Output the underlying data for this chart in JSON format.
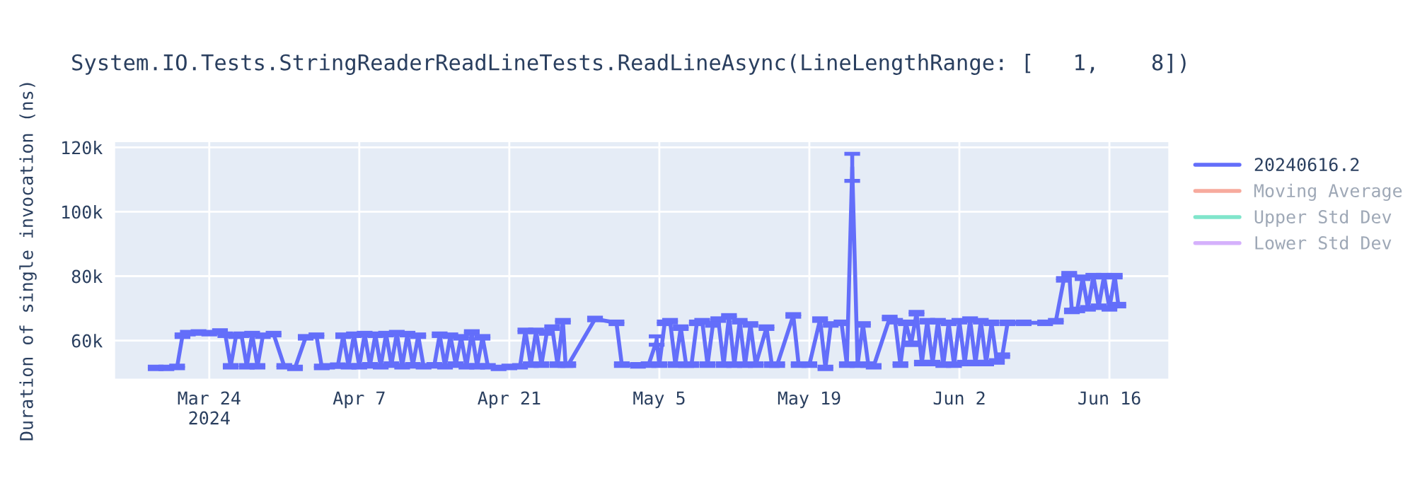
{
  "chart_data": {
    "type": "line",
    "title": "System.IO.Tests.StringReaderReadLineTests.ReadLineAsync(LineLengthRange: [   1,    8])",
    "ylabel": "Duration of single invocation (ns)",
    "x": [
      "2024-03-19",
      "2024-03-20",
      "2024-03-21",
      "2024-03-21T12:00",
      "2024-03-22",
      "2024-03-23",
      "2024-03-24",
      "2024-03-25",
      "2024-03-25T12:00",
      "2024-03-26",
      "2024-03-26T12:00",
      "2024-03-27",
      "2024-03-27T12:00",
      "2024-03-28",
      "2024-03-28T12:00",
      "2024-03-29",
      "2024-03-30",
      "2024-03-31",
      "2024-04-01",
      "2024-04-02",
      "2024-04-03",
      "2024-04-03T12:00",
      "2024-04-04",
      "2024-04-05",
      "2024-04-05T12:00",
      "2024-04-06",
      "2024-04-06T12:00",
      "2024-04-07",
      "2024-04-07T12:00",
      "2024-04-08",
      "2024-04-08T12:00",
      "2024-04-09",
      "2024-04-09T12:00",
      "2024-04-10",
      "2024-04-10T12:00",
      "2024-04-11",
      "2024-04-11T12:00",
      "2024-04-12",
      "2024-04-12T12:00",
      "2024-04-13",
      "2024-04-14",
      "2024-04-14T12:00",
      "2024-04-15",
      "2024-04-15T12:00",
      "2024-04-16",
      "2024-04-16T12:00",
      "2024-04-17",
      "2024-04-17T12:00",
      "2024-04-18",
      "2024-04-18T12:00",
      "2024-04-19",
      "2024-04-20",
      "2024-04-21",
      "2024-04-22",
      "2024-04-22T12:00",
      "2024-04-23",
      "2024-04-23T12:00",
      "2024-04-24",
      "2024-04-24T12:00",
      "2024-04-25",
      "2024-04-25T12:00",
      "2024-04-26",
      "2024-04-26T06:00",
      "2024-04-26T12:00",
      "2024-04-29",
      "2024-05-01",
      "2024-05-01T12:00",
      "2024-05-03",
      "2024-05-04",
      "2024-05-04T18:00",
      "2024-05-05",
      "2024-05-05T12:00",
      "2024-05-06",
      "2024-05-06T12:00",
      "2024-05-07",
      "2024-05-07T12:00",
      "2024-05-08",
      "2024-05-08T12:00",
      "2024-05-09",
      "2024-05-09T12:00",
      "2024-05-10",
      "2024-05-10T12:00",
      "2024-05-11",
      "2024-05-11T12:00",
      "2024-05-12",
      "2024-05-12T12:00",
      "2024-05-13",
      "2024-05-13T12:00",
      "2024-05-14",
      "2024-05-15",
      "2024-05-15T12:00",
      "2024-05-16",
      "2024-05-17T12:00",
      "2024-05-18",
      "2024-05-19",
      "2024-05-20",
      "2024-05-20T12:00",
      "2024-05-21",
      "2024-05-22",
      "2024-05-22T12:00",
      "2024-05-23",
      "2024-05-23T12:00",
      "2024-05-24",
      "2024-05-24T12:00",
      "2024-05-25",
      "2024-05-26T12:00",
      "2024-05-27",
      "2024-05-27T12:00",
      "2024-05-28",
      "2024-05-28T12:00",
      "2024-05-29",
      "2024-05-29T12:00",
      "2024-05-30",
      "2024-05-30T12:00",
      "2024-05-31",
      "2024-05-31T12:00",
      "2024-06-01",
      "2024-06-01T12:00",
      "2024-06-02",
      "2024-06-02T12:00",
      "2024-06-03",
      "2024-06-03T12:00",
      "2024-06-04",
      "2024-06-04T12:00",
      "2024-06-05",
      "2024-06-05T12:00",
      "2024-06-06",
      "2024-06-06T12:00",
      "2024-06-08",
      "2024-06-10",
      "2024-06-11",
      "2024-06-11T18:00",
      "2024-06-12T06:00",
      "2024-06-12T12:00",
      "2024-06-13",
      "2024-06-13T12:00",
      "2024-06-14",
      "2024-06-14T12:00",
      "2024-06-15",
      "2024-06-15T12:00",
      "2024-06-16",
      "2024-06-16T12:00",
      "2024-06-16T20:00"
    ],
    "series": [
      {
        "name": "20240616.2",
        "color": "#636efa",
        "values": [
          51500,
          51500,
          51800,
          61500,
          62300,
          62500,
          62300,
          62800,
          61800,
          52000,
          61500,
          61800,
          52000,
          62000,
          52000,
          61500,
          62000,
          52000,
          51500,
          61000,
          61500,
          51800,
          52000,
          52200,
          61500,
          52000,
          61800,
          52000,
          62000,
          52300,
          61800,
          52000,
          62000,
          52500,
          62300,
          52000,
          62000,
          52300,
          61500,
          52000,
          52300,
          61800,
          52000,
          61500,
          52500,
          61000,
          52000,
          62500,
          52000,
          61000,
          52000,
          51500,
          51800,
          52000,
          63000,
          52500,
          63000,
          52500,
          62500,
          64000,
          52500,
          66000,
          52500,
          52500,
          66700,
          65500,
          52500,
          52300,
          52500,
          60000,
          52500,
          65500,
          66000,
          52500,
          64000,
          52500,
          52500,
          65500,
          66000,
          52500,
          65000,
          66500,
          52500,
          67500,
          52500,
          66000,
          52500,
          65000,
          52500,
          64000,
          52500,
          52500,
          67800,
          52500,
          52500,
          66500,
          51500,
          65000,
          65500,
          52500,
          113800,
          52500,
          65000,
          52500,
          52000,
          67000,
          66000,
          52500,
          65500,
          59000,
          68500,
          53000,
          66000,
          53000,
          66000,
          52500,
          65500,
          52500,
          66000,
          53000,
          66500,
          53000,
          66000,
          53000,
          65500,
          53500,
          55300,
          65500,
          65500,
          65500,
          66000,
          79000,
          80600,
          69200,
          69500,
          79500,
          70000,
          80000,
          70500,
          80000,
          70000,
          80000,
          71000
        ],
        "errors": [
          400,
          400,
          400,
          400,
          400,
          400,
          400,
          400,
          400,
          400,
          400,
          400,
          400,
          400,
          400,
          400,
          400,
          400,
          400,
          400,
          400,
          400,
          400,
          400,
          400,
          400,
          400,
          400,
          400,
          400,
          400,
          400,
          400,
          400,
          400,
          400,
          400,
          400,
          400,
          400,
          400,
          400,
          400,
          400,
          400,
          400,
          400,
          400,
          400,
          400,
          400,
          400,
          400,
          400,
          400,
          400,
          400,
          400,
          400,
          400,
          400,
          400,
          400,
          400,
          400,
          400,
          400,
          400,
          400,
          1300,
          400,
          400,
          400,
          400,
          400,
          400,
          400,
          400,
          400,
          400,
          400,
          400,
          400,
          400,
          400,
          400,
          400,
          400,
          400,
          400,
          400,
          400,
          400,
          400,
          400,
          400,
          400,
          400,
          400,
          400,
          4200,
          400,
          400,
          400,
          400,
          400,
          400,
          400,
          400,
          400,
          400,
          400,
          400,
          400,
          400,
          400,
          400,
          400,
          400,
          400,
          400,
          400,
          400,
          400,
          400,
          400,
          400,
          400,
          400,
          400,
          400,
          400,
          400,
          400,
          400,
          400,
          400,
          400,
          400,
          400,
          400,
          400,
          400
        ]
      },
      {
        "name": "Moving Average",
        "color": "#f7aa9d",
        "values": [
          null,
          null,
          null,
          null,
          null,
          null,
          null,
          null,
          null,
          null,
          null,
          null,
          null,
          null,
          null,
          null,
          null,
          null,
          null,
          null,
          null,
          null,
          null,
          null,
          null,
          null,
          null,
          null,
          null,
          null,
          null,
          null,
          null,
          null,
          null,
          null,
          null,
          null,
          null,
          null,
          null,
          null,
          null,
          null,
          null,
          null,
          null,
          null,
          null,
          null,
          null,
          null,
          null,
          null,
          null,
          null,
          null,
          null,
          null,
          null,
          null,
          null,
          null,
          null,
          null,
          null,
          null,
          null,
          null,
          null,
          null,
          null,
          null,
          null,
          null,
          null,
          null,
          null,
          null,
          null,
          null,
          null,
          null,
          null,
          null,
          null,
          null,
          null,
          null,
          null,
          null,
          null,
          null,
          null,
          null,
          null,
          null,
          null,
          null,
          null,
          null,
          null,
          null,
          null,
          null,
          null,
          null,
          null,
          null,
          null,
          null,
          null,
          null,
          null,
          null,
          null,
          null,
          null,
          null,
          null,
          null,
          null,
          null,
          null,
          null,
          null,
          null,
          null,
          null,
          null,
          null,
          null,
          null,
          null,
          null,
          null,
          null,
          null,
          null,
          null,
          null,
          null,
          null
        ]
      },
      {
        "name": "Upper Std Dev",
        "color": "#80e5cb",
        "values": [
          null,
          null,
          null,
          null,
          null,
          null,
          null,
          null,
          null,
          null,
          null,
          null,
          null,
          null,
          null,
          null,
          null,
          null,
          null,
          null,
          null,
          null,
          null,
          null,
          null,
          null,
          null,
          null,
          null,
          null,
          null,
          null,
          null,
          null,
          null,
          null,
          null,
          null,
          null,
          null,
          null,
          null,
          null,
          null,
          null,
          null,
          null,
          null,
          null,
          null,
          null,
          null,
          null,
          null,
          null,
          null,
          null,
          null,
          null,
          null,
          null,
          null,
          null,
          null,
          null,
          null,
          null,
          null,
          null,
          null,
          null,
          null,
          null,
          null,
          null,
          null,
          null,
          null,
          null,
          null,
          null,
          null,
          null,
          null,
          null,
          null,
          null,
          null,
          null,
          null,
          null,
          null,
          null,
          null,
          null,
          null,
          null,
          null,
          null,
          null,
          null,
          null,
          null,
          null,
          null,
          null,
          null,
          null,
          null,
          null,
          null,
          null,
          null,
          null,
          null,
          null,
          null,
          null,
          null,
          null,
          null,
          null,
          null,
          null,
          null,
          null,
          null,
          null,
          null,
          null,
          null,
          null,
          null,
          null,
          null,
          null,
          null,
          null,
          null,
          null,
          null,
          null,
          null
        ]
      },
      {
        "name": "Lower Std Dev",
        "color": "#d5b1fc",
        "values": [
          null,
          null,
          null,
          null,
          null,
          null,
          null,
          null,
          null,
          null,
          null,
          null,
          null,
          null,
          null,
          null,
          null,
          null,
          null,
          null,
          null,
          null,
          null,
          null,
          null,
          null,
          null,
          null,
          null,
          null,
          null,
          null,
          null,
          null,
          null,
          null,
          null,
          null,
          null,
          null,
          null,
          null,
          null,
          null,
          null,
          null,
          null,
          null,
          null,
          null,
          null,
          null,
          null,
          null,
          null,
          null,
          null,
          null,
          null,
          null,
          null,
          null,
          null,
          null,
          null,
          null,
          null,
          null,
          null,
          null,
          null,
          null,
          null,
          null,
          null,
          null,
          null,
          null,
          null,
          null,
          null,
          null,
          null,
          null,
          null,
          null,
          null,
          null,
          null,
          null,
          null,
          null,
          null,
          null,
          null,
          null,
          null,
          null,
          null,
          null,
          null,
          null,
          null,
          null,
          null,
          null,
          null,
          null,
          null,
          null,
          null,
          null,
          null,
          null,
          null,
          null,
          null,
          null,
          null,
          null,
          null,
          null,
          null,
          null,
          null,
          null,
          null,
          null,
          null,
          null,
          null,
          null,
          null,
          null,
          null,
          null,
          null,
          null,
          null,
          null,
          null,
          null,
          null
        ]
      }
    ],
    "xlim": [
      "2024-03-15T04:00",
      "2024-06-21T13:00"
    ],
    "xticks": [
      {
        "value": "2024-03-24",
        "label": "Mar 24\n2024"
      },
      {
        "value": "2024-04-07",
        "label": "Apr 7"
      },
      {
        "value": "2024-04-21",
        "label": "Apr 21"
      },
      {
        "value": "2024-05-05",
        "label": "May 5"
      },
      {
        "value": "2024-05-19",
        "label": "May 19"
      },
      {
        "value": "2024-06-02",
        "label": "Jun 2"
      },
      {
        "value": "2024-06-16",
        "label": "Jun 16"
      }
    ],
    "ylim": [
      48000,
      121800
    ],
    "yticks": [
      {
        "value": 60000,
        "label": "60k"
      },
      {
        "value": 80000,
        "label": "80k"
      },
      {
        "value": 100000,
        "label": "100k"
      },
      {
        "value": 120000,
        "label": "120k"
      }
    ],
    "grid": true,
    "legend": "top right",
    "marker": "none",
    "line_style": "solid"
  }
}
